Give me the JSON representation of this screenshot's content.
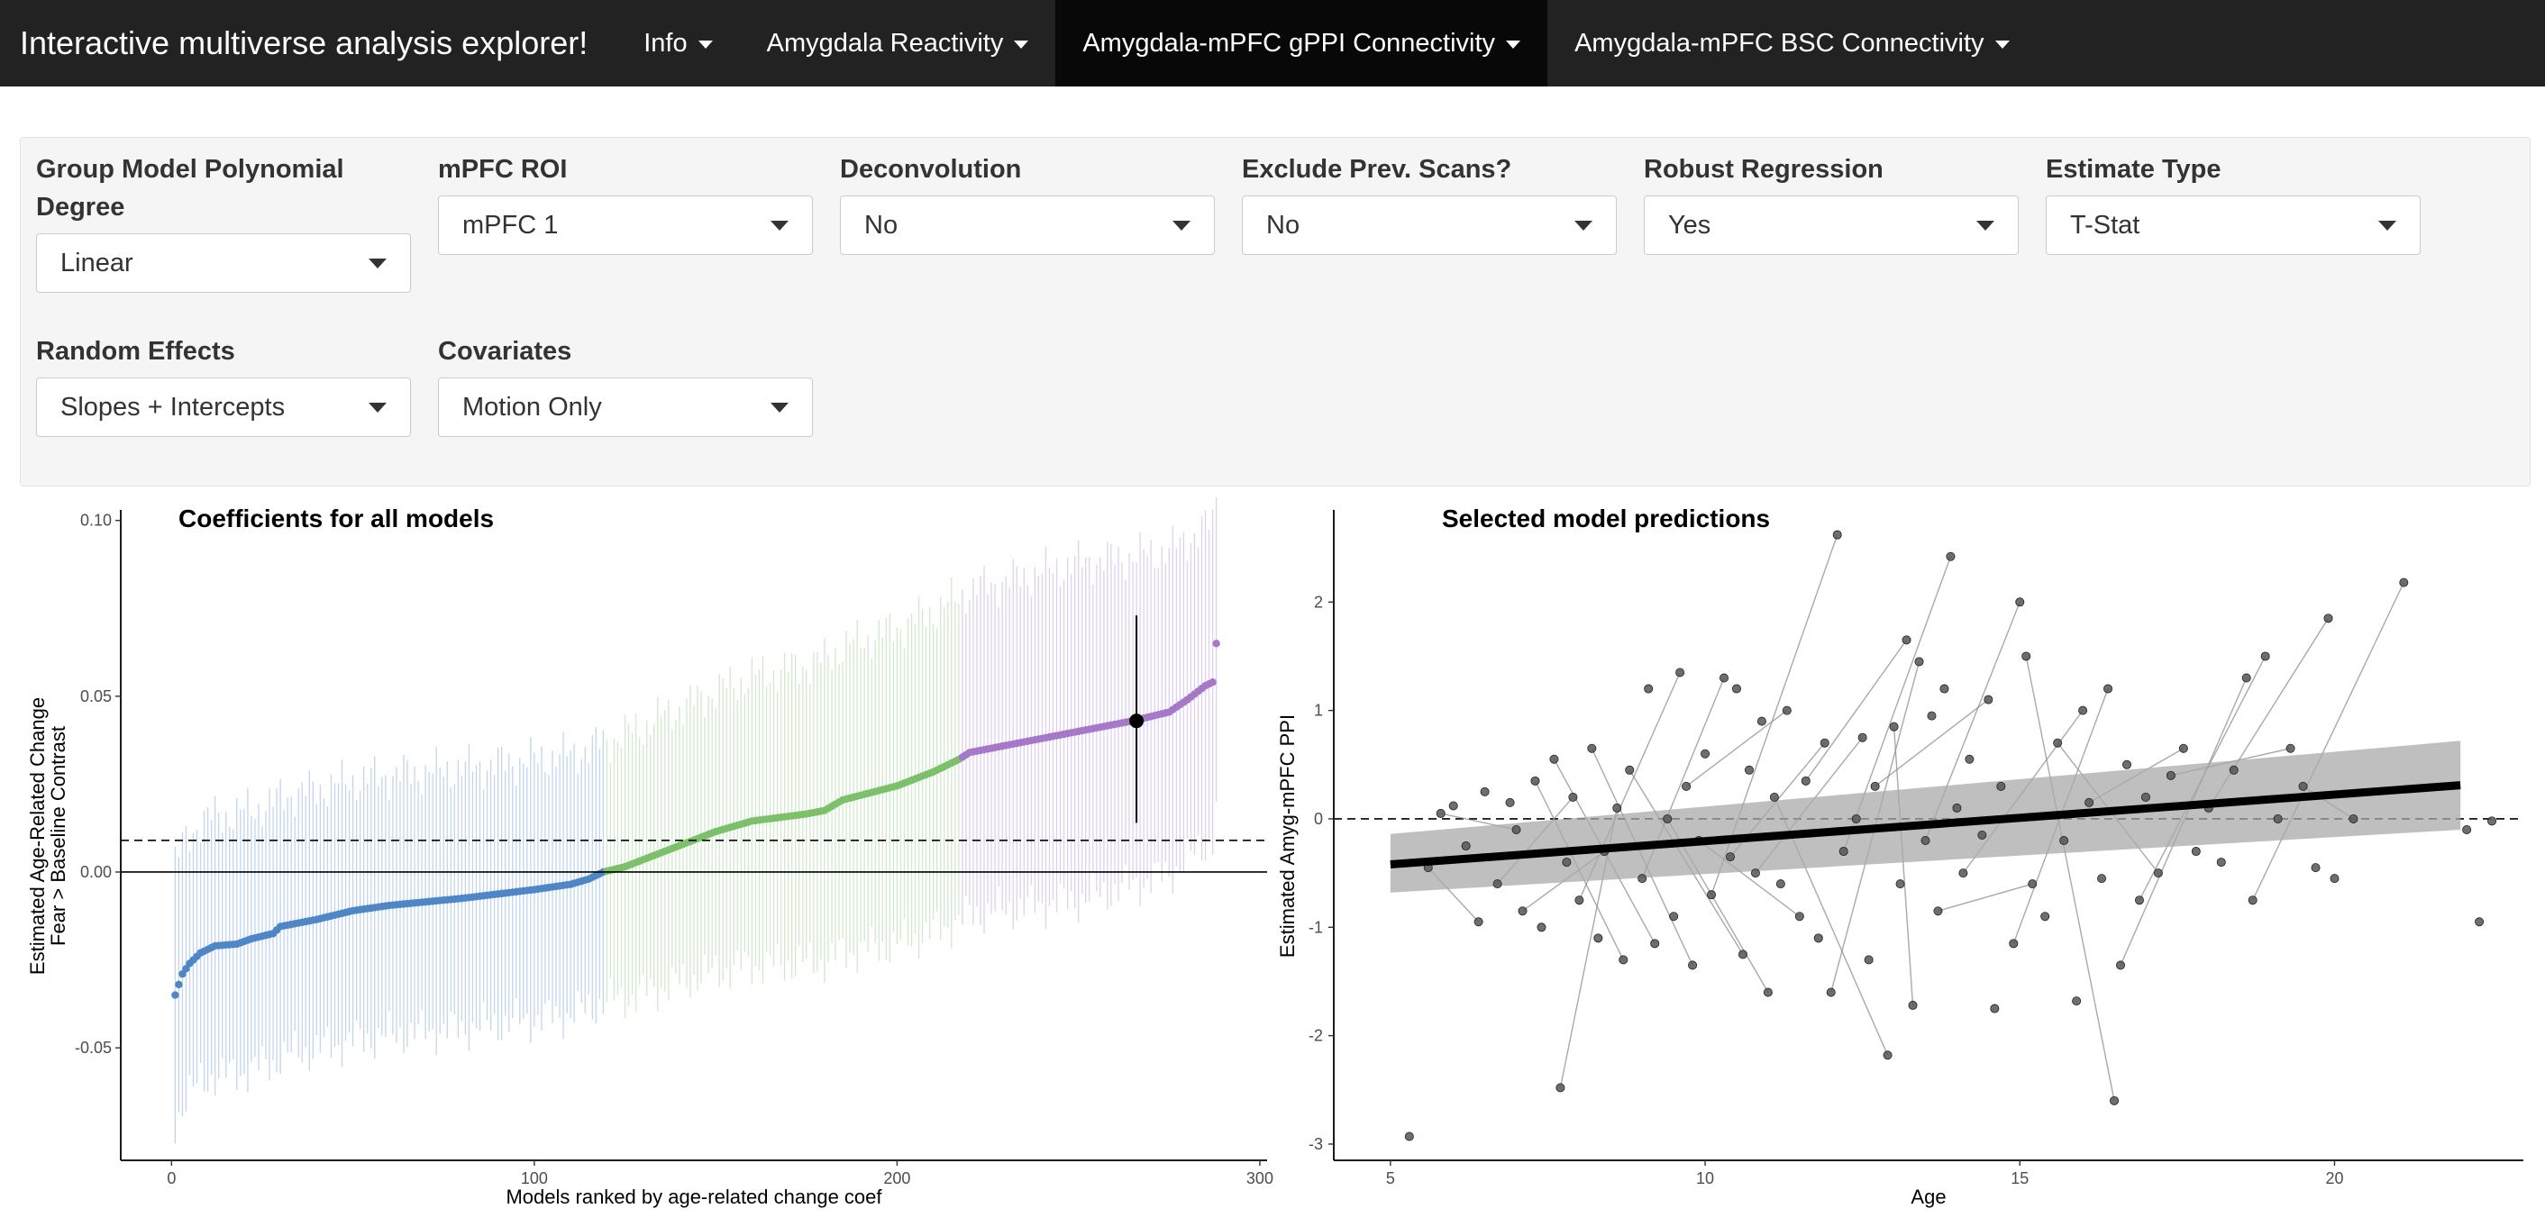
{
  "navbar": {
    "title": "Interactive multiverse analysis explorer!",
    "items": [
      {
        "label": "Info"
      },
      {
        "label": "Amygdala Reactivity"
      },
      {
        "label": "Amygdala-mPFC gPPI Connectivity"
      },
      {
        "label": "Amygdala-mPFC BSC Connectivity"
      }
    ],
    "active_index": 2
  },
  "controls": [
    {
      "label": "Group Model Polynomial Degree",
      "value": "Linear"
    },
    {
      "label": "mPFC ROI",
      "value": "mPFC 1"
    },
    {
      "label": "Deconvolution",
      "value": "No"
    },
    {
      "label": "Exclude Prev. Scans?",
      "value": "No"
    },
    {
      "label": "Robust Regression",
      "value": "Yes"
    },
    {
      "label": "Estimate Type",
      "value": "T-Stat"
    },
    {
      "label": "Random Effects",
      "value": "Slopes + Intercepts"
    },
    {
      "label": "Covariates",
      "value": "Motion Only"
    }
  ],
  "colors": {
    "navbar": "#222222",
    "blue": "#4f86c6",
    "green": "#7cc06c",
    "purple": "#a678c8",
    "ribbon": "#a9a9a9"
  },
  "chart_data": [
    {
      "type": "scatter",
      "title": "Coefficients for all models",
      "xlabel": "Models ranked by age-related change coef",
      "ylabel_lines": [
        "Estimated Age-Related Change",
        "Fear > Baseline Contrast"
      ],
      "xlim": [
        -14,
        302
      ],
      "ylim": [
        -0.082,
        0.103
      ],
      "xticks": [
        0,
        100,
        200,
        300
      ],
      "yticks": [
        -0.05,
        0.0,
        0.05,
        0.1
      ],
      "ytick_labels": [
        "-0.05",
        "0.00",
        "0.05",
        "0.10"
      ],
      "n_models": 288,
      "reference_lines": {
        "zero_solid": 0.0,
        "dashed": 0.009
      },
      "groups": [
        {
          "color": "blue",
          "from": 1,
          "to": 119
        },
        {
          "color": "green",
          "from": 120,
          "to": 217
        },
        {
          "color": "purple",
          "from": 218,
          "to": 288
        }
      ],
      "estimate_curve": [
        [
          1,
          -0.035
        ],
        [
          2,
          -0.032
        ],
        [
          3,
          -0.029
        ],
        [
          5,
          -0.026
        ],
        [
          8,
          -0.023
        ],
        [
          12,
          -0.021
        ],
        [
          18,
          -0.0205
        ],
        [
          22,
          -0.019
        ],
        [
          28,
          -0.0175
        ],
        [
          30,
          -0.0155
        ],
        [
          40,
          -0.0135
        ],
        [
          50,
          -0.011
        ],
        [
          60,
          -0.0095
        ],
        [
          80,
          -0.0075
        ],
        [
          100,
          -0.005
        ],
        [
          110,
          -0.0035
        ],
        [
          115,
          -0.002
        ],
        [
          119,
          0.0
        ],
        [
          125,
          0.0015
        ],
        [
          130,
          0.0035
        ],
        [
          140,
          0.0075
        ],
        [
          150,
          0.0115
        ],
        [
          160,
          0.0145
        ],
        [
          175,
          0.0165
        ],
        [
          180,
          0.0175
        ],
        [
          185,
          0.0205
        ],
        [
          200,
          0.0245
        ],
        [
          210,
          0.0285
        ],
        [
          217,
          0.032
        ],
        [
          220,
          0.034
        ],
        [
          230,
          0.036
        ],
        [
          250,
          0.04
        ],
        [
          265,
          0.043
        ],
        [
          275,
          0.0455
        ],
        [
          280,
          0.049
        ],
        [
          285,
          0.053
        ],
        [
          287,
          0.054
        ],
        [
          288,
          0.065
        ]
      ],
      "ci_halfwidth": [
        [
          1,
          0.037
        ],
        [
          120,
          0.037
        ],
        [
          200,
          0.045
        ],
        [
          250,
          0.048
        ],
        [
          288,
          0.045
        ]
      ],
      "selected": {
        "rank": 266,
        "estimate": 0.043,
        "ci_low": 0.014,
        "ci_high": 0.073
      }
    },
    {
      "type": "scatter",
      "title": "Selected model predictions",
      "xlabel": "Age",
      "ylabel": "Estimated Amyg-mPFC PPI",
      "xlim": [
        4.1,
        23.0
      ],
      "ylim": [
        -3.15,
        2.85
      ],
      "xticks": [
        5,
        10,
        15,
        20
      ],
      "yticks": [
        -3,
        -2,
        -1,
        0,
        1,
        2
      ],
      "reference_lines": {
        "dashed": 0.0
      },
      "fit": {
        "x": [
          5.0,
          22.0
        ],
        "y": [
          -0.42,
          0.31
        ]
      },
      "band": {
        "x": [
          5.0,
          22.0
        ],
        "lower": [
          -0.68,
          -0.1
        ],
        "upper": [
          -0.14,
          0.72
        ]
      },
      "points": [
        [
          5.3,
          -2.93
        ],
        [
          5.6,
          -0.45
        ],
        [
          5.8,
          0.05
        ],
        [
          6.0,
          0.12
        ],
        [
          6.2,
          -0.25
        ],
        [
          6.4,
          -0.95
        ],
        [
          6.5,
          0.25
        ],
        [
          6.7,
          -0.6
        ],
        [
          6.9,
          0.15
        ],
        [
          7.0,
          -0.1
        ],
        [
          7.1,
          -0.85
        ],
        [
          7.3,
          0.35
        ],
        [
          7.4,
          -1.0
        ],
        [
          7.6,
          0.55
        ],
        [
          7.7,
          -2.48
        ],
        [
          7.8,
          -0.4
        ],
        [
          7.9,
          0.2
        ],
        [
          8.0,
          -0.75
        ],
        [
          8.2,
          0.65
        ],
        [
          8.3,
          -1.1
        ],
        [
          8.4,
          -0.3
        ],
        [
          8.6,
          0.1
        ],
        [
          8.7,
          -1.3
        ],
        [
          8.8,
          0.45
        ],
        [
          9.0,
          -0.55
        ],
        [
          9.1,
          1.2
        ],
        [
          9.2,
          -1.15
        ],
        [
          9.4,
          0.0
        ],
        [
          9.5,
          -0.9
        ],
        [
          9.6,
          1.35
        ],
        [
          9.7,
          0.3
        ],
        [
          9.8,
          -1.35
        ],
        [
          9.9,
          -0.2
        ],
        [
          10.0,
          0.6
        ],
        [
          10.1,
          -0.7
        ],
        [
          10.3,
          1.3
        ],
        [
          10.4,
          -0.35
        ],
        [
          10.5,
          1.2
        ],
        [
          10.6,
          -1.25
        ],
        [
          10.7,
          0.45
        ],
        [
          10.8,
          -0.5
        ],
        [
          10.9,
          0.9
        ],
        [
          11.0,
          -1.6
        ],
        [
          11.1,
          0.2
        ],
        [
          11.2,
          -0.6
        ],
        [
          11.3,
          1.0
        ],
        [
          11.5,
          -0.9
        ],
        [
          11.6,
          0.35
        ],
        [
          11.8,
          -1.1
        ],
        [
          11.9,
          0.7
        ],
        [
          12.0,
          -1.6
        ],
        [
          12.1,
          2.62
        ],
        [
          12.2,
          -0.3
        ],
        [
          12.4,
          0.0
        ],
        [
          12.5,
          0.75
        ],
        [
          12.6,
          -1.3
        ],
        [
          12.7,
          0.3
        ],
        [
          12.9,
          -2.18
        ],
        [
          13.0,
          0.85
        ],
        [
          13.1,
          -0.6
        ],
        [
          13.2,
          1.65
        ],
        [
          13.3,
          -1.72
        ],
        [
          13.4,
          1.45
        ],
        [
          13.5,
          -0.2
        ],
        [
          13.6,
          0.95
        ],
        [
          13.7,
          -0.85
        ],
        [
          13.8,
          1.2
        ],
        [
          13.9,
          2.42
        ],
        [
          14.0,
          0.1
        ],
        [
          14.1,
          -0.5
        ],
        [
          14.2,
          0.55
        ],
        [
          14.4,
          -0.15
        ],
        [
          14.5,
          1.1
        ],
        [
          14.6,
          -1.75
        ],
        [
          14.7,
          0.3
        ],
        [
          14.9,
          -1.15
        ],
        [
          15.0,
          2.0
        ],
        [
          15.1,
          1.5
        ],
        [
          15.2,
          -0.6
        ],
        [
          15.4,
          -0.9
        ],
        [
          15.6,
          0.7
        ],
        [
          15.7,
          -0.2
        ],
        [
          15.9,
          -1.68
        ],
        [
          16.0,
          1.0
        ],
        [
          16.1,
          0.15
        ],
        [
          16.3,
          -0.55
        ],
        [
          16.4,
          1.2
        ],
        [
          16.5,
          -2.6
        ],
        [
          16.6,
          -1.35
        ],
        [
          16.7,
          0.5
        ],
        [
          16.9,
          -0.75
        ],
        [
          17.0,
          0.2
        ],
        [
          17.2,
          -0.5
        ],
        [
          17.4,
          0.4
        ],
        [
          17.6,
          0.65
        ],
        [
          17.8,
          -0.3
        ],
        [
          18.0,
          0.1
        ],
        [
          18.2,
          -0.4
        ],
        [
          18.4,
          0.45
        ],
        [
          18.6,
          1.3
        ],
        [
          18.7,
          -0.75
        ],
        [
          18.9,
          1.5
        ],
        [
          19.1,
          0.0
        ],
        [
          19.3,
          0.65
        ],
        [
          19.5,
          0.3
        ],
        [
          19.7,
          -0.45
        ],
        [
          19.9,
          1.85
        ],
        [
          20.0,
          -0.55
        ],
        [
          20.3,
          0.0
        ],
        [
          21.1,
          2.18
        ],
        [
          22.1,
          -0.1
        ],
        [
          22.3,
          -0.95
        ],
        [
          22.5,
          -0.02
        ]
      ],
      "segments": [
        [
          [
            5.6,
            -0.45
          ],
          [
            6.4,
            -0.95
          ]
        ],
        [
          [
            5.8,
            0.05
          ],
          [
            7.0,
            -0.1
          ]
        ],
        [
          [
            6.7,
            -0.6
          ],
          [
            7.9,
            0.2
          ]
        ],
        [
          [
            7.1,
            -0.85
          ],
          [
            8.4,
            -0.3
          ]
        ],
        [
          [
            7.3,
            0.35
          ],
          [
            8.7,
            -1.3
          ]
        ],
        [
          [
            7.6,
            0.55
          ],
          [
            9.2,
            -1.15
          ]
        ],
        [
          [
            7.7,
            -2.48
          ],
          [
            8.6,
            0.1
          ]
        ],
        [
          [
            8.0,
            -0.75
          ],
          [
            9.6,
            1.35
          ]
        ],
        [
          [
            8.2,
            0.65
          ],
          [
            9.8,
            -1.35
          ]
        ],
        [
          [
            8.8,
            0.45
          ],
          [
            10.6,
            -1.25
          ]
        ],
        [
          [
            9.0,
            -0.55
          ],
          [
            10.3,
            1.3
          ]
        ],
        [
          [
            9.4,
            0.0
          ],
          [
            11.0,
            -1.6
          ]
        ],
        [
          [
            9.7,
            0.3
          ],
          [
            11.3,
            1.0
          ]
        ],
        [
          [
            9.9,
            -0.2
          ],
          [
            11.5,
            -0.9
          ]
        ],
        [
          [
            10.1,
            -0.7
          ],
          [
            12.1,
            2.62
          ]
        ],
        [
          [
            10.4,
            -0.35
          ],
          [
            11.9,
            0.7
          ]
        ],
        [
          [
            10.8,
            -0.5
          ],
          [
            12.5,
            0.75
          ]
        ],
        [
          [
            11.1,
            0.2
          ],
          [
            12.9,
            -2.18
          ]
        ],
        [
          [
            11.6,
            0.35
          ],
          [
            13.2,
            1.65
          ]
        ],
        [
          [
            12.0,
            -1.6
          ],
          [
            13.4,
            1.45
          ]
        ],
        [
          [
            12.2,
            -0.3
          ],
          [
            13.9,
            2.42
          ]
        ],
        [
          [
            12.7,
            0.3
          ],
          [
            14.5,
            1.1
          ]
        ],
        [
          [
            13.0,
            0.85
          ],
          [
            13.3,
            -1.72
          ]
        ],
        [
          [
            13.5,
            -0.2
          ],
          [
            15.0,
            2.0
          ]
        ],
        [
          [
            13.7,
            -0.85
          ],
          [
            15.2,
            -0.6
          ]
        ],
        [
          [
            14.1,
            -0.5
          ],
          [
            16.0,
            1.0
          ]
        ],
        [
          [
            14.9,
            -1.15
          ],
          [
            16.4,
            1.2
          ]
        ],
        [
          [
            15.1,
            1.5
          ],
          [
            16.5,
            -2.6
          ]
        ],
        [
          [
            15.6,
            0.7
          ],
          [
            17.2,
            -0.5
          ]
        ],
        [
          [
            16.1,
            0.15
          ],
          [
            17.6,
            0.65
          ]
        ],
        [
          [
            16.6,
            -1.35
          ],
          [
            18.6,
            1.3
          ]
        ],
        [
          [
            16.9,
            -0.75
          ],
          [
            18.9,
            1.5
          ]
        ],
        [
          [
            17.4,
            0.4
          ],
          [
            19.3,
            0.65
          ]
        ],
        [
          [
            18.0,
            0.1
          ],
          [
            19.9,
            1.85
          ]
        ],
        [
          [
            18.7,
            -0.75
          ],
          [
            21.1,
            2.18
          ]
        ],
        [
          [
            19.5,
            0.3
          ],
          [
            20.3,
            0.0
          ]
        ]
      ]
    }
  ]
}
